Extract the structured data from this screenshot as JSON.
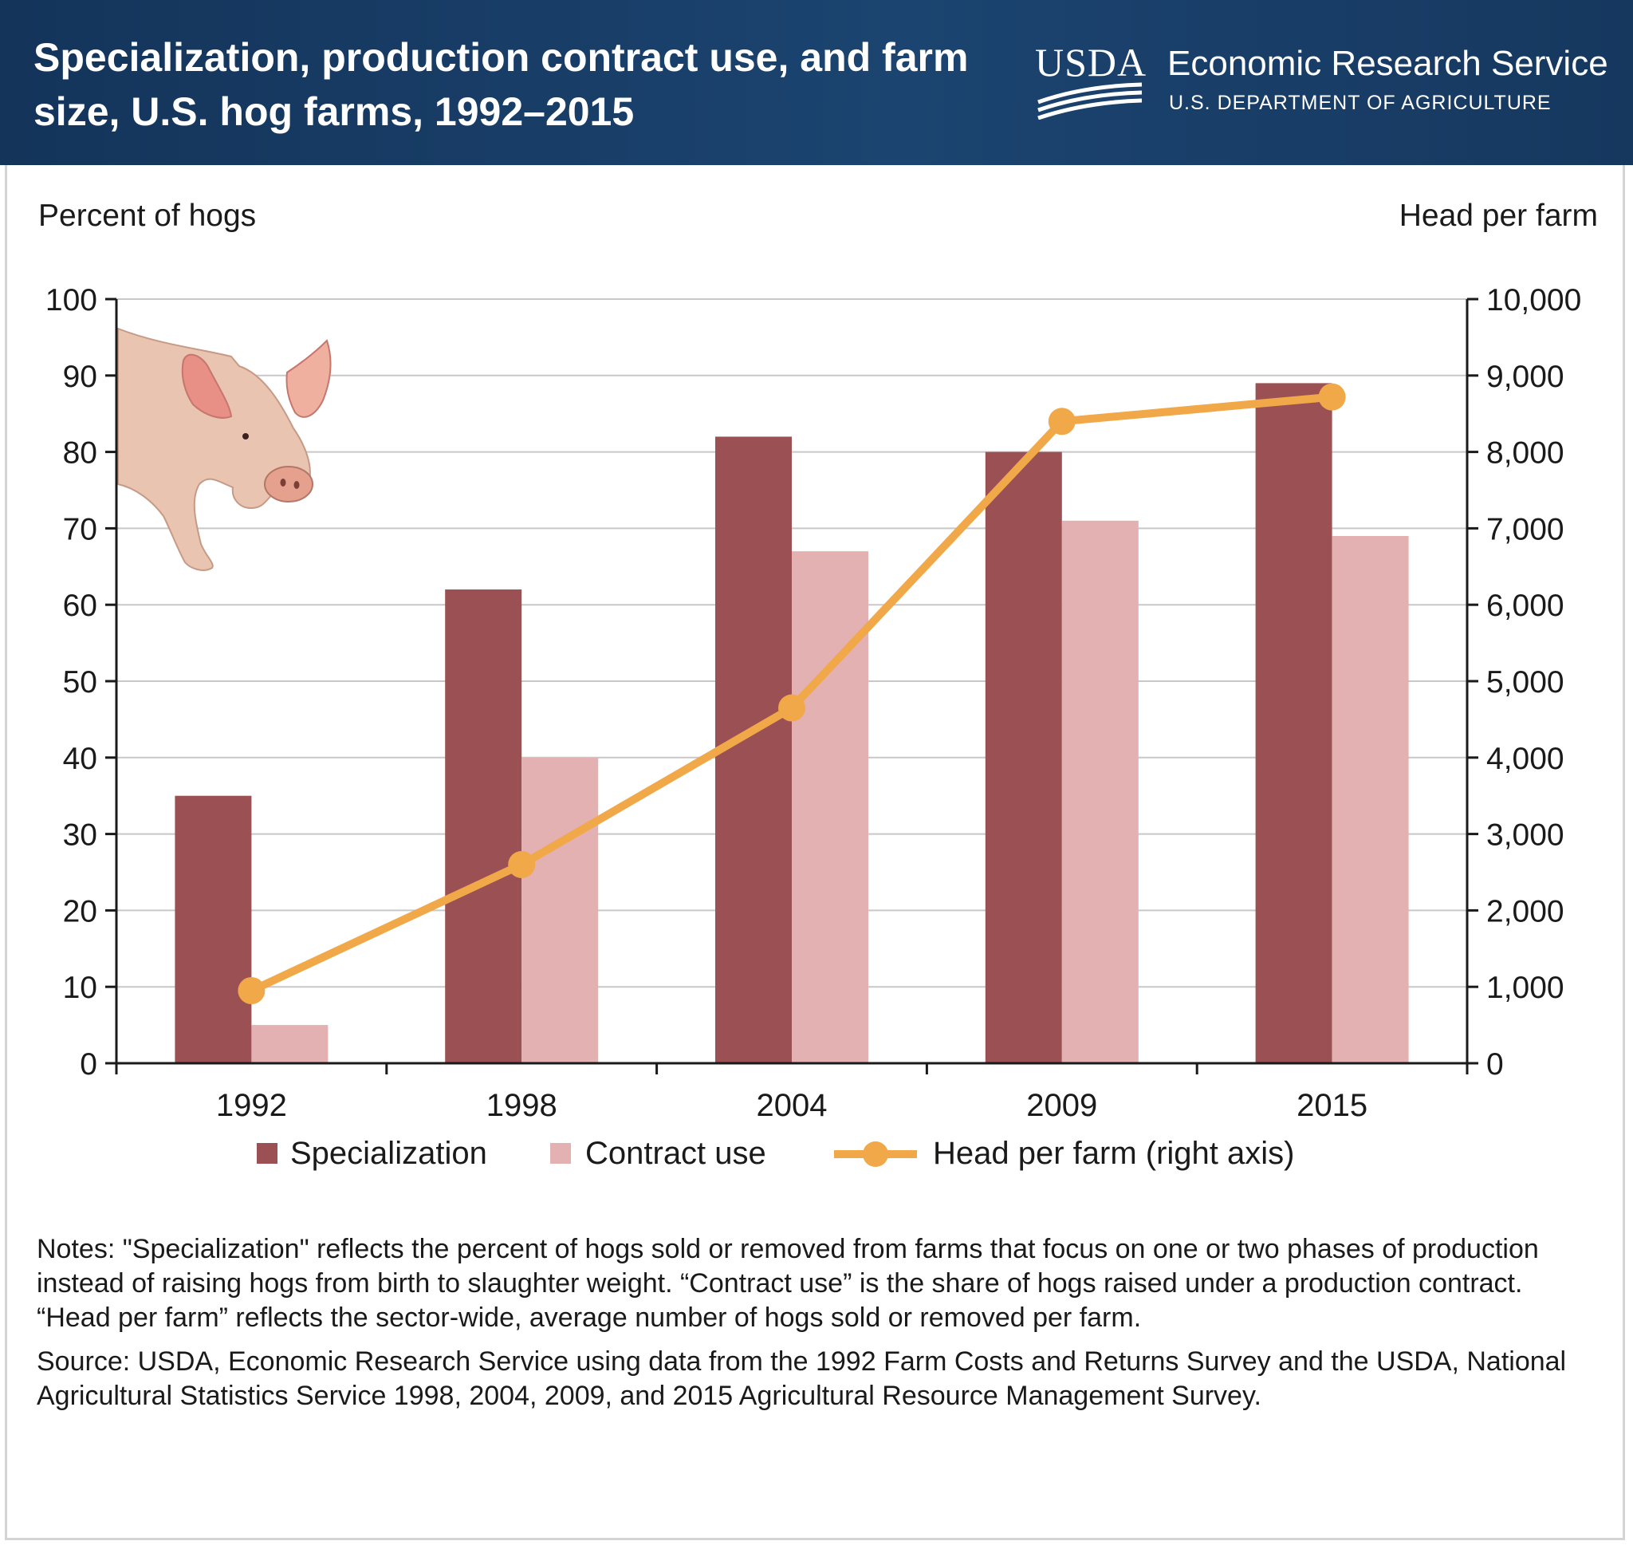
{
  "header": {
    "title": "Specialization, production contract use, and farm size, U.S. hog farms, 1992–2015",
    "usda_letters": "USDA",
    "agency": "Economic Research Service",
    "department": "U.S. DEPARTMENT OF AGRICULTURE"
  },
  "chart_data": {
    "type": "bar",
    "categories": [
      "1992",
      "1998",
      "2004",
      "2009",
      "2015"
    ],
    "series": [
      {
        "name": "Specialization",
        "type": "bar",
        "axis": "left",
        "color": "#9b5154",
        "values": [
          35,
          62,
          82,
          80,
          89
        ]
      },
      {
        "name": "Contract use",
        "type": "bar",
        "axis": "left",
        "color": "#e3b1b1",
        "values": [
          5,
          40,
          67,
          71,
          69
        ]
      },
      {
        "name": "Head per farm (right axis)",
        "type": "line",
        "axis": "right",
        "color": "#f0a848",
        "values": [
          950,
          2600,
          4650,
          8400,
          8720
        ]
      }
    ],
    "ylabel": "Percent of hogs",
    "ylabel_right": "Head per farm",
    "ylim": [
      0,
      100
    ],
    "ylim_right": [
      0,
      10000
    ],
    "yticks": [
      "0",
      "10",
      "20",
      "30",
      "40",
      "50",
      "60",
      "70",
      "80",
      "90",
      "100"
    ],
    "yticks_right": [
      "0",
      "1,000",
      "2,000",
      "3,000",
      "4,000",
      "5,000",
      "6,000",
      "7,000",
      "8,000",
      "9,000",
      "10,000"
    ],
    "grid": true,
    "legend": "bottom"
  },
  "notes": {
    "notes_text": "Notes: \"Specialization\" reflects the percent of hogs sold or removed from farms that focus on one or two phases of production instead of raising hogs from birth to slaughter weight. “Contract use” is the share of hogs raised under a production contract. “Head per farm” reflects the sector-wide, average number of hogs sold or removed per farm.",
    "source_text": "Source: USDA, Economic Research Service using data from the 1992 Farm Costs and Returns Survey and the USDA, National Agricultural Statistics Service 1998, 2004, 2009, and 2015 Agricultural Resource Management Survey."
  }
}
